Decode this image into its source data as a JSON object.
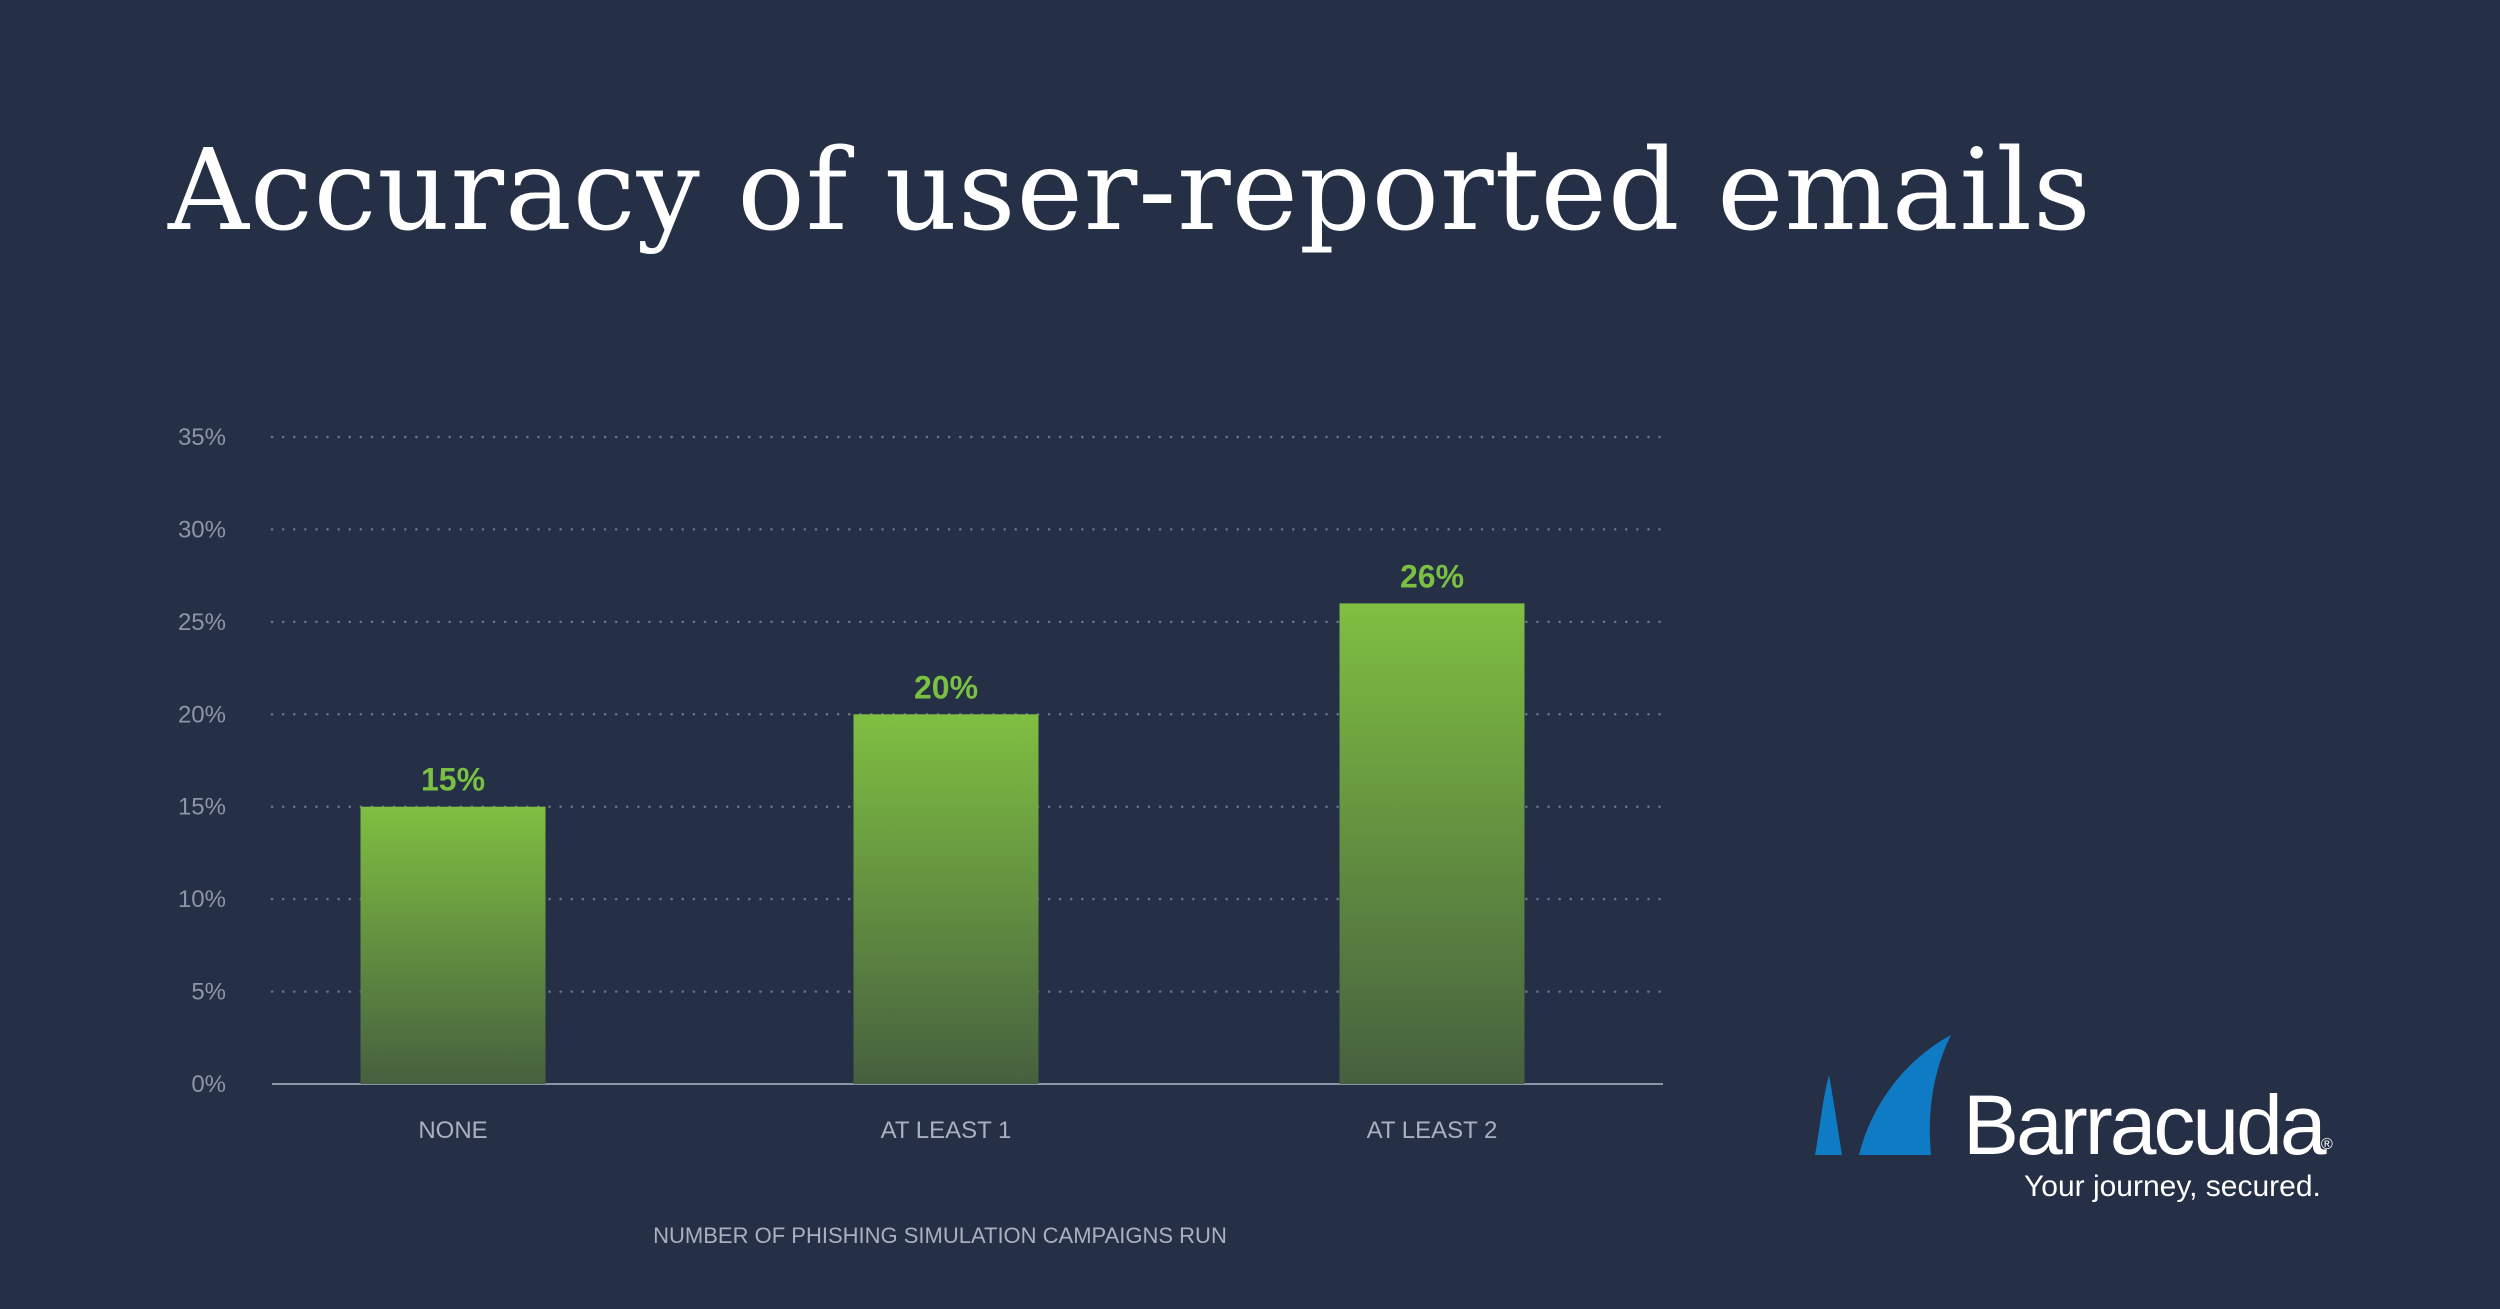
{
  "page": {
    "title": "Accuracy of user-reported emails"
  },
  "chart_data": {
    "type": "bar",
    "title": "Accuracy of user-reported emails",
    "categories": [
      "NONE",
      "AT LEAST 1",
      "AT LEAST 2"
    ],
    "values": [
      15,
      20,
      26
    ],
    "value_labels": [
      "15%",
      "20%",
      "26%"
    ],
    "xlabel": "NUMBER OF PHISHING SIMULATION CAMPAIGNS RUN",
    "ylabel": "",
    "ylim": [
      0,
      35
    ],
    "yticks": [
      0,
      5,
      10,
      15,
      20,
      25,
      30,
      35
    ],
    "ytick_labels": [
      "0%",
      "5%",
      "10%",
      "15%",
      "20%",
      "25%",
      "30%",
      "35%"
    ],
    "grid": true,
    "grid_style": "dotted",
    "legend": "none"
  },
  "colors": {
    "background": "#252f45",
    "bar_top": "#7fbf41",
    "bar_bottom": "#46603f",
    "data_label": "#7ac143",
    "gridline": "#6b7488",
    "axis_line": "#8d96a8",
    "logo_blue": "#0f7bc4"
  },
  "branding": {
    "name": "Barracuda",
    "registered": "®",
    "tagline": "Your journey, secured.",
    "icon": "barracuda-fin-icon"
  }
}
